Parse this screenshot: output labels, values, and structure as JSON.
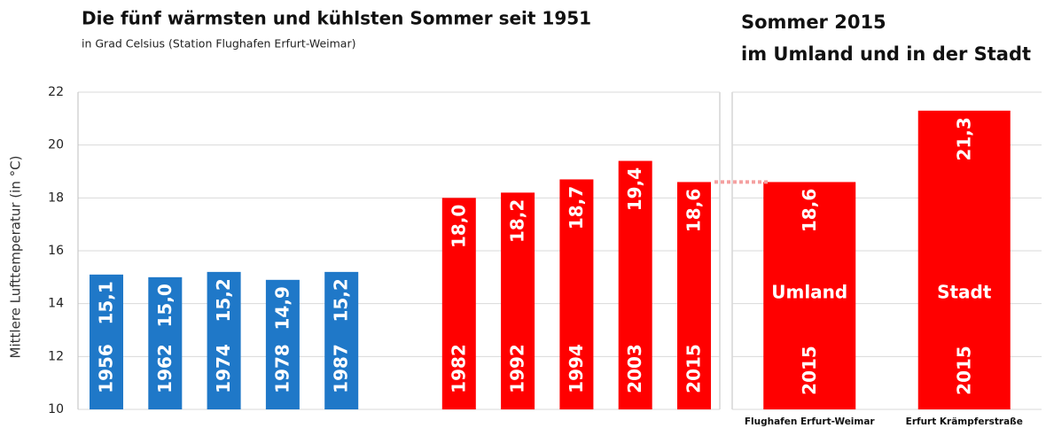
{
  "chart_data": [
    {
      "type": "bar",
      "title": "Die fünf wärmsten und kühlsten Sommer seit 1951",
      "subtitle": "in Grad Celsius (Station Flughafen Erfurt-Weimar)",
      "y_label": "Mittlere Lufttemperatur (in °C)",
      "categories": [
        "1956",
        "1962",
        "1974",
        "1978",
        "1987",
        null,
        "1982",
        "1992",
        "1994",
        "2003",
        "2015"
      ],
      "values": [
        15.1,
        15.0,
        15.2,
        14.9,
        15.2,
        null,
        18.0,
        18.2,
        18.7,
        19.4,
        18.6
      ],
      "value_labels": [
        "15,1",
        "15,0",
        "15,2",
        "14,9",
        "15,2",
        null,
        "18,0",
        "18,2",
        "18,7",
        "19,4",
        "18,6"
      ],
      "colors": [
        "#1f78c8",
        "#1f78c8",
        "#1f78c8",
        "#1f78c8",
        "#1f78c8",
        null,
        "#ff0000",
        "#ff0000",
        "#ff0000",
        "#ff0000",
        "#ff0000"
      ],
      "ylim": [
        10,
        22
      ],
      "yticks": [
        10,
        12,
        14,
        16,
        18,
        20,
        22
      ],
      "grid": true
    },
    {
      "type": "bar",
      "title": [
        "Sommer 2015",
        "im Umland und in der Stadt"
      ],
      "categories": [
        "Flughafen Erfurt-Weimar",
        "Erfurt Krämpferstraße"
      ],
      "inner_labels": [
        "Umland",
        "Stadt"
      ],
      "years": [
        "2015",
        "2015"
      ],
      "values": [
        18.6,
        21.3
      ],
      "value_labels": [
        "18,6",
        "21,3"
      ],
      "color": "#ff0000",
      "ylim": [
        10,
        22
      ],
      "grid": true
    }
  ]
}
